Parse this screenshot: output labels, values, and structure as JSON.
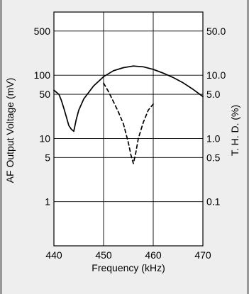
{
  "chart_data": {
    "type": "line",
    "xlabel": "Frequency (kHz)",
    "ylabel_left": "AF Output Voltage (mV)",
    "ylabel_right": "T. H. D. (%)",
    "xlim": [
      440,
      470
    ],
    "x_ticks": [
      "440",
      "450",
      "460",
      "470"
    ],
    "x_tick_values": [
      440,
      450,
      460,
      470
    ],
    "y_left_scale": "log",
    "y_left_lim": [
      0.2,
      1000
    ],
    "y_left_ticks": [
      "500",
      "100",
      "50",
      "10",
      "5",
      "1"
    ],
    "y_left_tick_values": [
      500,
      100,
      50,
      10,
      5,
      1
    ],
    "y_right_scale": "log",
    "y_right_lim": [
      0.02,
      100
    ],
    "y_right_ticks": [
      "50.0",
      "10.0",
      "5.0",
      "1.0",
      "0.5",
      "0.1"
    ],
    "y_right_tick_values": [
      50,
      10,
      5,
      1,
      0.5,
      0.1
    ],
    "grid": true,
    "series": [
      {
        "axis": "left",
        "style": "solid",
        "x": [
          440,
          441,
          441.5,
          442,
          442.5,
          443,
          443.5,
          444,
          444.5,
          445,
          446,
          448,
          450,
          452,
          454,
          456,
          458,
          460,
          462,
          464,
          466,
          468,
          470
        ],
        "y": [
          58,
          50,
          40,
          30,
          22,
          16,
          14,
          13,
          20,
          28,
          42,
          68,
          95,
          118,
          132,
          140,
          136,
          124,
          108,
          92,
          76,
          60,
          46
        ]
      },
      {
        "axis": "right",
        "style": "dashed",
        "x": [
          450,
          451,
          452,
          453,
          454,
          455,
          455.5,
          456,
          456.5,
          457,
          458,
          459,
          460
        ],
        "y": [
          7.5,
          5.5,
          3.8,
          2.6,
          1.7,
          0.85,
          0.55,
          0.4,
          0.6,
          1.0,
          1.8,
          2.8,
          3.5
        ]
      }
    ]
  }
}
